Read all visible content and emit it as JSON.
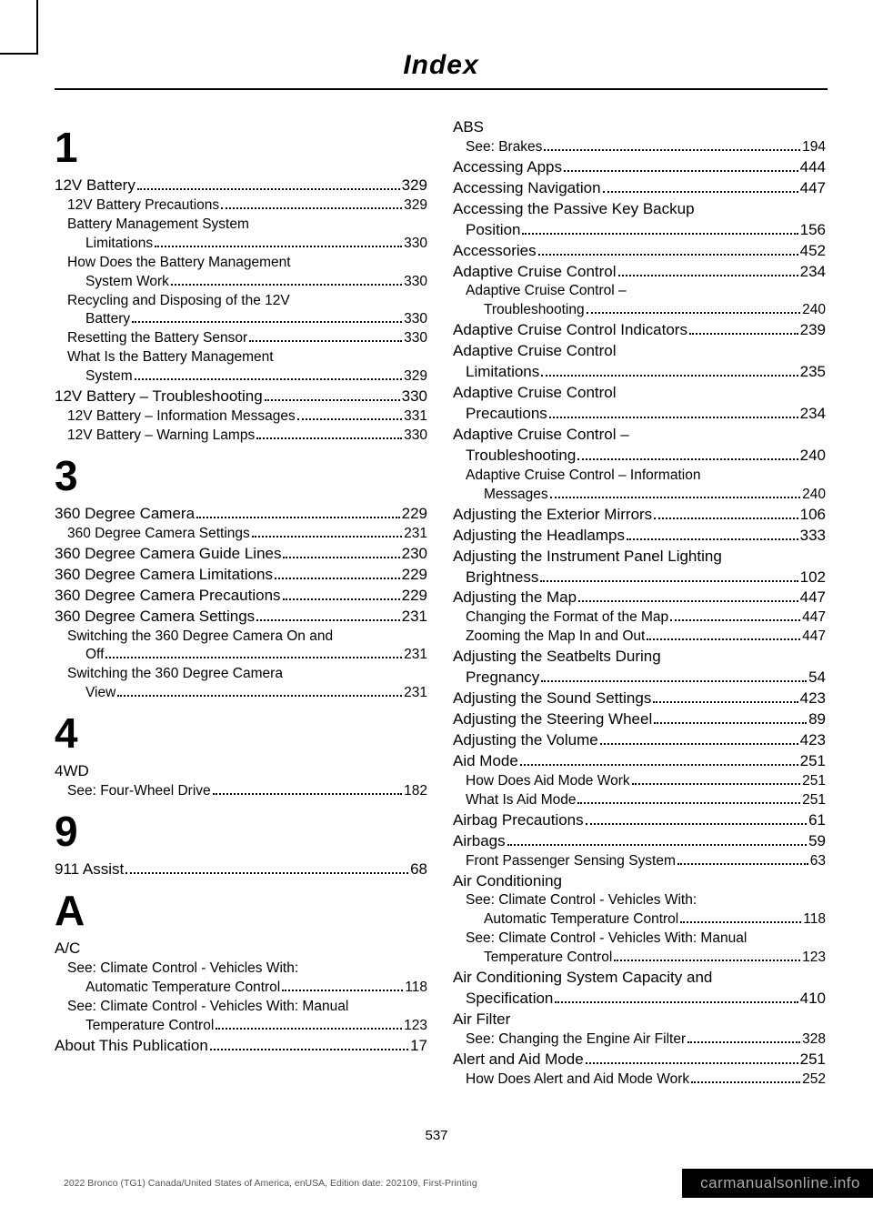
{
  "header": "Index",
  "page_number": "537",
  "footer_left": "2022 Bronco (TG1) Canada/United States of America, enUSA, Edition date: 202109, First-Printing",
  "footer_right": "carmanualsonline.info",
  "left_sections": [
    {
      "letter": "1",
      "entries": [
        {
          "level": 0,
          "label": "12V Battery",
          "page": "329"
        },
        {
          "level": 1,
          "label": "12V Battery Precautions",
          "page": "329"
        },
        {
          "level": 1,
          "label": "Battery Management System",
          "cont": true
        },
        {
          "level": 2,
          "label": "Limitations",
          "page": "330"
        },
        {
          "level": 1,
          "label": "How Does the Battery Management",
          "cont": true
        },
        {
          "level": 2,
          "label": "System Work",
          "page": "330"
        },
        {
          "level": 1,
          "label": "Recycling and Disposing of the 12V",
          "cont": true
        },
        {
          "level": 2,
          "label": "Battery",
          "page": "330"
        },
        {
          "level": 1,
          "label": "Resetting the Battery Sensor",
          "page": "330"
        },
        {
          "level": 1,
          "label": "What Is the Battery Management",
          "cont": true
        },
        {
          "level": 2,
          "label": "System",
          "page": "329"
        },
        {
          "level": 0,
          "label": "12V Battery – Troubleshooting",
          "page": "330"
        },
        {
          "level": 1,
          "label": "12V Battery – Information Messages",
          "page": "331"
        },
        {
          "level": 1,
          "label": "12V Battery – Warning Lamps",
          "page": "330"
        }
      ]
    },
    {
      "letter": "3",
      "entries": [
        {
          "level": 0,
          "label": "360 Degree Camera",
          "page": "229"
        },
        {
          "level": 1,
          "label": "360 Degree Camera Settings",
          "page": "231"
        },
        {
          "level": 0,
          "label": "360 Degree Camera Guide Lines",
          "page": "230"
        },
        {
          "level": 0,
          "label": "360 Degree Camera Limitations",
          "page": "229"
        },
        {
          "level": 0,
          "label": "360 Degree Camera Precautions",
          "page": "229"
        },
        {
          "level": 0,
          "label": "360 Degree Camera Settings",
          "page": "231"
        },
        {
          "level": 1,
          "label": "Switching the 360 Degree Camera On and",
          "cont": true
        },
        {
          "level": 2,
          "label": "Off",
          "page": "231"
        },
        {
          "level": 1,
          "label": "Switching the 360 Degree Camera",
          "cont": true
        },
        {
          "level": 2,
          "label": "View",
          "page": "231"
        }
      ]
    },
    {
      "letter": "4",
      "entries": [
        {
          "level": 0,
          "label": "4WD",
          "cont": true
        },
        {
          "level": 1,
          "label": "See: Four-Wheel Drive",
          "page": "182"
        }
      ]
    },
    {
      "letter": "9",
      "entries": [
        {
          "level": 0,
          "label": "911 Assist",
          "page": "68"
        }
      ]
    },
    {
      "letter": "A",
      "entries": [
        {
          "level": 0,
          "label": "A/C",
          "cont": true
        },
        {
          "level": 1,
          "label": "See: Climate Control - Vehicles With:",
          "cont": true
        },
        {
          "level": 2,
          "label": "Automatic Temperature Control",
          "page": "118"
        },
        {
          "level": 1,
          "label": "See: Climate Control - Vehicles With: Manual",
          "cont": true
        },
        {
          "level": 2,
          "label": "Temperature Control",
          "page": "123"
        },
        {
          "level": 0,
          "label": "About This Publication",
          "page": "17"
        }
      ]
    }
  ],
  "right_sections": [
    {
      "letter": "",
      "entries": [
        {
          "level": 0,
          "label": "ABS",
          "cont": true
        },
        {
          "level": 1,
          "label": "See: Brakes",
          "page": "194"
        },
        {
          "level": 0,
          "label": "Accessing Apps",
          "page": "444"
        },
        {
          "level": 0,
          "label": "Accessing Navigation",
          "page": "447"
        },
        {
          "level": 0,
          "label": "Accessing the Passive Key Backup",
          "cont": true
        },
        {
          "level": 1,
          "label": "Position",
          "page": "156",
          "forceLevel0Style": true
        },
        {
          "level": 0,
          "label": "Accessories",
          "page": "452"
        },
        {
          "level": 0,
          "label": "Adaptive Cruise Control",
          "page": "234"
        },
        {
          "level": 1,
          "label": "Adaptive Cruise Control –",
          "cont": true
        },
        {
          "level": 2,
          "label": "Troubleshooting",
          "page": "240"
        },
        {
          "level": 0,
          "label": "Adaptive Cruise Control Indicators",
          "page": "239"
        },
        {
          "level": 0,
          "label": "Adaptive Cruise Control",
          "cont": true
        },
        {
          "level": 1,
          "label": "Limitations",
          "page": "235",
          "forceLevel0Style": true
        },
        {
          "level": 0,
          "label": "Adaptive Cruise Control",
          "cont": true
        },
        {
          "level": 1,
          "label": "Precautions",
          "page": "234",
          "forceLevel0Style": true
        },
        {
          "level": 0,
          "label": "Adaptive Cruise Control –",
          "cont": true
        },
        {
          "level": 1,
          "label": "Troubleshooting",
          "page": "240",
          "forceLevel0Style": true
        },
        {
          "level": 1,
          "label": "Adaptive Cruise Control – Information",
          "cont": true
        },
        {
          "level": 2,
          "label": "Messages",
          "page": "240"
        },
        {
          "level": 0,
          "label": "Adjusting the Exterior Mirrors",
          "page": "106"
        },
        {
          "level": 0,
          "label": "Adjusting the Headlamps",
          "page": "333"
        },
        {
          "level": 0,
          "label": "Adjusting the Instrument Panel Lighting",
          "cont": true
        },
        {
          "level": 1,
          "label": "Brightness",
          "page": "102",
          "forceLevel0Style": true
        },
        {
          "level": 0,
          "label": "Adjusting the Map",
          "page": "447"
        },
        {
          "level": 1,
          "label": "Changing the Format of the Map",
          "page": "447"
        },
        {
          "level": 1,
          "label": "Zooming the Map In and Out",
          "page": "447"
        },
        {
          "level": 0,
          "label": "Adjusting the Seatbelts During",
          "cont": true
        },
        {
          "level": 1,
          "label": "Pregnancy",
          "page": "54",
          "forceLevel0Style": true
        },
        {
          "level": 0,
          "label": "Adjusting the Sound Settings",
          "page": "423"
        },
        {
          "level": 0,
          "label": "Adjusting the Steering Wheel",
          "page": "89"
        },
        {
          "level": 0,
          "label": "Adjusting the Volume",
          "page": "423"
        },
        {
          "level": 0,
          "label": "Aid Mode",
          "page": "251"
        },
        {
          "level": 1,
          "label": "How Does Aid Mode Work",
          "page": "251"
        },
        {
          "level": 1,
          "label": "What Is Aid Mode",
          "page": "251"
        },
        {
          "level": 0,
          "label": "Airbag Precautions",
          "page": "61"
        },
        {
          "level": 0,
          "label": "Airbags",
          "page": "59"
        },
        {
          "level": 1,
          "label": "Front Passenger Sensing System",
          "page": "63"
        },
        {
          "level": 0,
          "label": "Air Conditioning",
          "cont": true
        },
        {
          "level": 1,
          "label": "See: Climate Control - Vehicles With:",
          "cont": true
        },
        {
          "level": 2,
          "label": "Automatic Temperature Control",
          "page": "118"
        },
        {
          "level": 1,
          "label": "See: Climate Control - Vehicles With: Manual",
          "cont": true
        },
        {
          "level": 2,
          "label": "Temperature Control",
          "page": "123"
        },
        {
          "level": 0,
          "label": "Air Conditioning System Capacity and",
          "cont": true
        },
        {
          "level": 1,
          "label": "Specification",
          "page": "410",
          "forceLevel0Style": true
        },
        {
          "level": 0,
          "label": "Air Filter",
          "cont": true
        },
        {
          "level": 1,
          "label": "See: Changing the Engine Air Filter",
          "page": "328"
        },
        {
          "level": 0,
          "label": "Alert and Aid Mode",
          "page": "251"
        },
        {
          "level": 1,
          "label": "How Does Alert and Aid Mode Work",
          "page": "252"
        }
      ]
    }
  ]
}
